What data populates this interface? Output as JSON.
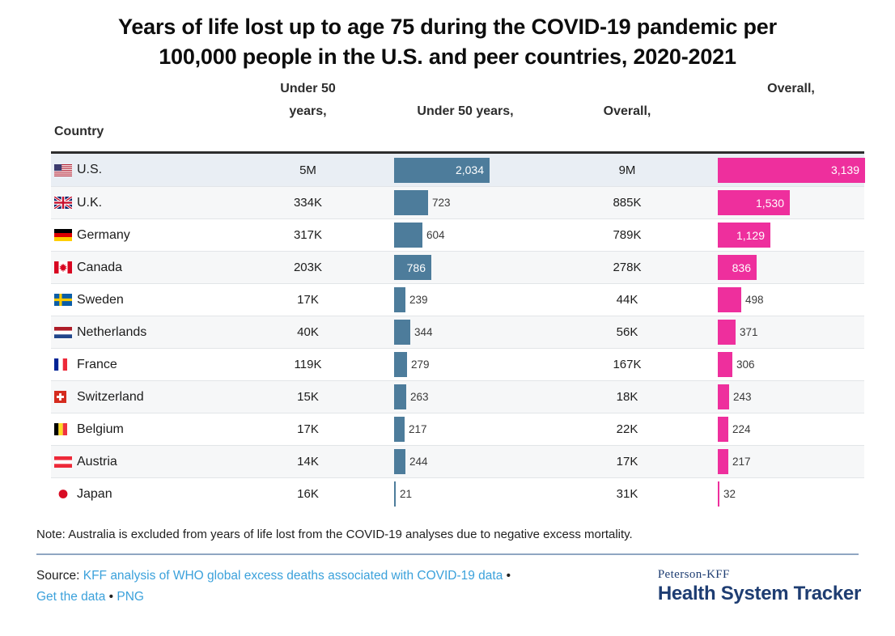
{
  "title": {
    "line1": "Years of life lost up to age 75 during the COVID-19 pandemic per",
    "line2": "100,000 people in the U.S. and peer countries, 2020-2021"
  },
  "table": {
    "headers": {
      "country": "Country",
      "under50_total_line1": "Under 50",
      "under50_total_line2": "years,",
      "under50_rate": "Under 50 years,",
      "overall_total": "Overall,",
      "overall_rate": "Overall,"
    },
    "rows": [
      {
        "country": "U.S.",
        "flag": "us-flag",
        "under50_total": "5M",
        "under50_rate": 2034,
        "overall_total": "9M",
        "overall_rate": 3139
      },
      {
        "country": "U.K.",
        "flag": "uk-flag",
        "under50_total": "334K",
        "under50_rate": 723,
        "overall_total": "885K",
        "overall_rate": 1530
      },
      {
        "country": "Germany",
        "flag": "germany-flag",
        "under50_total": "317K",
        "under50_rate": 604,
        "overall_total": "789K",
        "overall_rate": 1129
      },
      {
        "country": "Canada",
        "flag": "canada-flag",
        "under50_total": "203K",
        "under50_rate": 786,
        "overall_total": "278K",
        "overall_rate": 836
      },
      {
        "country": "Sweden",
        "flag": "sweden-flag",
        "under50_total": "17K",
        "under50_rate": 239,
        "overall_total": "44K",
        "overall_rate": 498
      },
      {
        "country": "Netherlands",
        "flag": "netherlands-flag",
        "under50_total": "40K",
        "under50_rate": 344,
        "overall_total": "56K",
        "overall_rate": 371
      },
      {
        "country": "France",
        "flag": "france-flag",
        "under50_total": "119K",
        "under50_rate": 279,
        "overall_total": "167K",
        "overall_rate": 306
      },
      {
        "country": "Switzerland",
        "flag": "switzerland-flag",
        "under50_total": "15K",
        "under50_rate": 263,
        "overall_total": "18K",
        "overall_rate": 243
      },
      {
        "country": "Belgium",
        "flag": "belgium-flag",
        "under50_total": "17K",
        "under50_rate": 217,
        "overall_total": "22K",
        "overall_rate": 224
      },
      {
        "country": "Austria",
        "flag": "austria-flag",
        "under50_total": "14K",
        "under50_rate": 244,
        "overall_total": "17K",
        "overall_rate": 217
      },
      {
        "country": "Japan",
        "flag": "japan-flag",
        "under50_total": "16K",
        "under50_rate": 21,
        "overall_total": "31K",
        "overall_rate": 32
      }
    ]
  },
  "chart_data": {
    "type": "bar",
    "title": "Years of life lost up to age 75 during the COVID-19 pandemic per 100,000 people in the U.S. and peer countries, 2020-2021",
    "categories": [
      "U.S.",
      "U.K.",
      "Germany",
      "Canada",
      "Sweden",
      "Netherlands",
      "France",
      "Switzerland",
      "Belgium",
      "Austria",
      "Japan"
    ],
    "series": [
      {
        "name": "Under 50 years, (total, text column)",
        "values": [
          "5M",
          "334K",
          "317K",
          "203K",
          "17K",
          "40K",
          "119K",
          "15K",
          "17K",
          "14K",
          "16K"
        ]
      },
      {
        "name": "Under 50 years, (bar, per 100,000)",
        "values": [
          2034,
          723,
          604,
          786,
          239,
          344,
          279,
          263,
          217,
          244,
          21
        ]
      },
      {
        "name": "Overall, (total, text column)",
        "values": [
          "9M",
          "885K",
          "789K",
          "278K",
          "44K",
          "56K",
          "167K",
          "18K",
          "22K",
          "17K",
          "31K"
        ]
      },
      {
        "name": "Overall, (bar, per 100,000)",
        "values": [
          3139,
          1530,
          1129,
          836,
          498,
          371,
          306,
          243,
          224,
          217,
          32
        ]
      }
    ],
    "xlabel": "",
    "ylabel": "",
    "xlim": [
      0,
      3139
    ],
    "grid": false,
    "legend_position": "none",
    "orientation": "horizontal"
  },
  "note": "Note: Australia is excluded from years of life lost from the COVID-19 analyses due to negative excess mortality.",
  "source": {
    "label": "Source:",
    "link1": "KFF analysis of WHO global excess deaths associated with COVID-19 data",
    "sep1": "•",
    "link2": "Get the data",
    "sep2": "•",
    "link3": "PNG"
  },
  "logo": {
    "top": "Peterson-KFF",
    "bottom": "Health System Tracker"
  },
  "colors": {
    "under50_bar": "#4d7c9b",
    "overall_bar": "#ee2f9d",
    "highlight_row": "#e9eef4",
    "stripe_row": "#f6f7f8",
    "link": "#3ba1db",
    "logo_navy": "#1e3d72"
  }
}
